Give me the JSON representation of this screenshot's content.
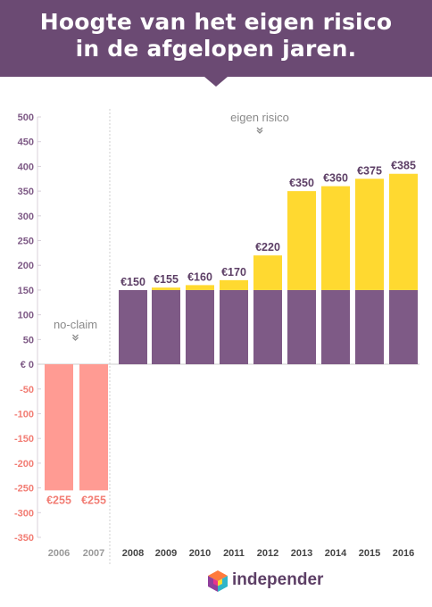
{
  "header": {
    "title_line1": "Hoogte van het eigen risico",
    "title_line2": "in de afgelopen jaren."
  },
  "brand": {
    "name": "independer",
    "logo_icon": "independer-cube-logo-icon"
  },
  "colors": {
    "header_bg": "#6b4a73",
    "base": "#7e5a86",
    "eigen_risico": "#ffd930",
    "no_claim": "#ff9b93",
    "value_label": "#5d3f66",
    "no_claim_label": "#f27d74",
    "negative_tick": "#f27d74",
    "positive_tick": "#7e5a86"
  },
  "chart_data": {
    "type": "bar",
    "categories": [
      "2006",
      "2007",
      "2008",
      "2009",
      "2010",
      "2011",
      "2012",
      "2013",
      "2014",
      "2015",
      "2016"
    ],
    "series": [
      {
        "values": [
          -255,
          -255,
          0,
          0,
          0,
          0,
          0,
          0,
          0,
          0,
          0
        ]
      },
      {
        "values": [
          0,
          0,
          150,
          150,
          150,
          150,
          150,
          150,
          150,
          150,
          150
        ]
      },
      {
        "values": [
          0,
          0,
          0,
          5,
          10,
          20,
          70,
          200,
          210,
          225,
          235
        ]
      }
    ],
    "value_labels": [
      "€255",
      "€255",
      "€150",
      "€155",
      "€160",
      "€170",
      "€220",
      "€350",
      "€360",
      "€375",
      "€385"
    ],
    "ylim": [
      -350,
      500
    ],
    "yticks": [
      500,
      450,
      400,
      350,
      300,
      250,
      200,
      150,
      100,
      50,
      0,
      -50,
      -100,
      -150,
      -200,
      -250,
      -300,
      -350
    ],
    "ytick_labels": [
      "500",
      "450",
      "400",
      "350",
      "300",
      "250",
      "200",
      "150",
      "100",
      "50",
      "€ 0",
      "-50",
      "-100",
      "-150",
      "-200",
      "-250",
      "-300",
      "-350"
    ],
    "annotations": {
      "no_claim": "no-claim",
      "eigen_risico": "eigen risico"
    },
    "grid": false,
    "divider_after_category": "2007"
  }
}
